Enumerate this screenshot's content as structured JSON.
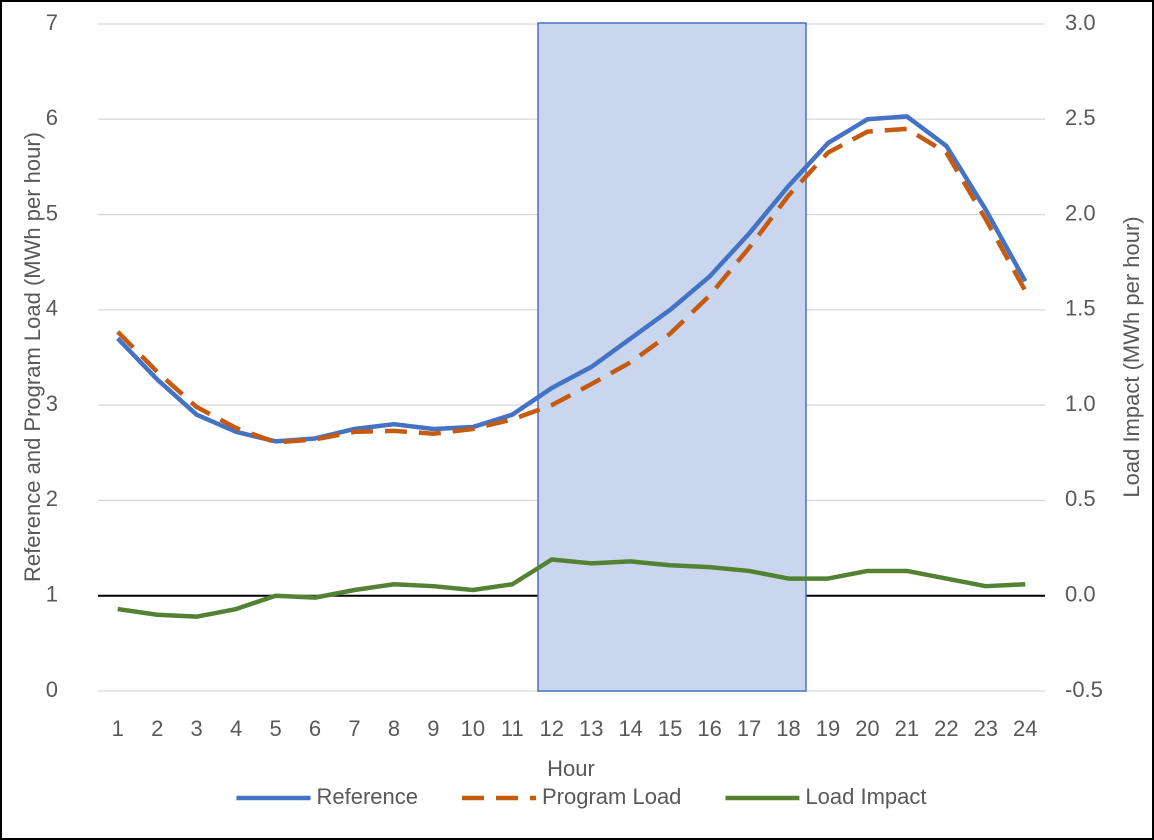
{
  "chart_data": {
    "type": "line",
    "xlabel": "Hour",
    "ylabel": "Reference and Program Load (MWh per hour)",
    "y2label": "Load Impact (MWh per hour)",
    "categories": [
      "1",
      "2",
      "3",
      "4",
      "5",
      "6",
      "7",
      "8",
      "9",
      "10",
      "11",
      "12",
      "13",
      "14",
      "15",
      "16",
      "17",
      "18",
      "19",
      "20",
      "21",
      "22",
      "23",
      "24"
    ],
    "series": [
      {
        "name": "Reference",
        "color": "#4472c4",
        "dash": false,
        "values": [
          3.7,
          3.27,
          2.9,
          2.72,
          2.62,
          2.65,
          2.75,
          2.8,
          2.75,
          2.77,
          2.9,
          3.18,
          3.4,
          3.7,
          4.0,
          4.35,
          4.8,
          5.3,
          5.75,
          6.0,
          6.03,
          5.72,
          5.05,
          4.3
        ]
      },
      {
        "name": "Program Load",
        "color": "#c55a11",
        "dash": true,
        "values": [
          3.77,
          3.35,
          2.98,
          2.76,
          2.61,
          2.64,
          2.72,
          2.73,
          2.7,
          2.75,
          2.85,
          3.0,
          3.22,
          3.45,
          3.75,
          4.15,
          4.65,
          5.2,
          5.65,
          5.87,
          5.9,
          5.65,
          4.95,
          4.2
        ]
      },
      {
        "name": "Load Impact",
        "color": "#548235",
        "dash": false,
        "axis": "y2",
        "values": [
          -0.07,
          -0.1,
          -0.11,
          -0.07,
          0.0,
          -0.01,
          0.03,
          0.06,
          0.05,
          0.03,
          0.06,
          0.19,
          0.17,
          0.18,
          0.16,
          0.15,
          0.13,
          0.09,
          0.09,
          0.13,
          0.13,
          0.09,
          0.05,
          0.06
        ]
      }
    ],
    "ylim": [
      0,
      7
    ],
    "yticks": [
      0,
      1,
      2,
      3,
      4,
      5,
      6,
      7
    ],
    "y2lim": [
      -0.5,
      3.0
    ],
    "y2ticks": [
      {
        "value": -0.5,
        "label": "-0.5"
      },
      {
        "value": 0,
        "label": "0.0"
      },
      {
        "value": 0.5,
        "label": "0.5"
      },
      {
        "value": 1,
        "label": "1.0"
      },
      {
        "value": 1.5,
        "label": "1.5"
      },
      {
        "value": 2,
        "label": "2.0"
      },
      {
        "value": 2.5,
        "label": "2.5"
      },
      {
        "value": 3,
        "label": "3.0"
      }
    ],
    "grid": true,
    "legend": "bottom"
  }
}
